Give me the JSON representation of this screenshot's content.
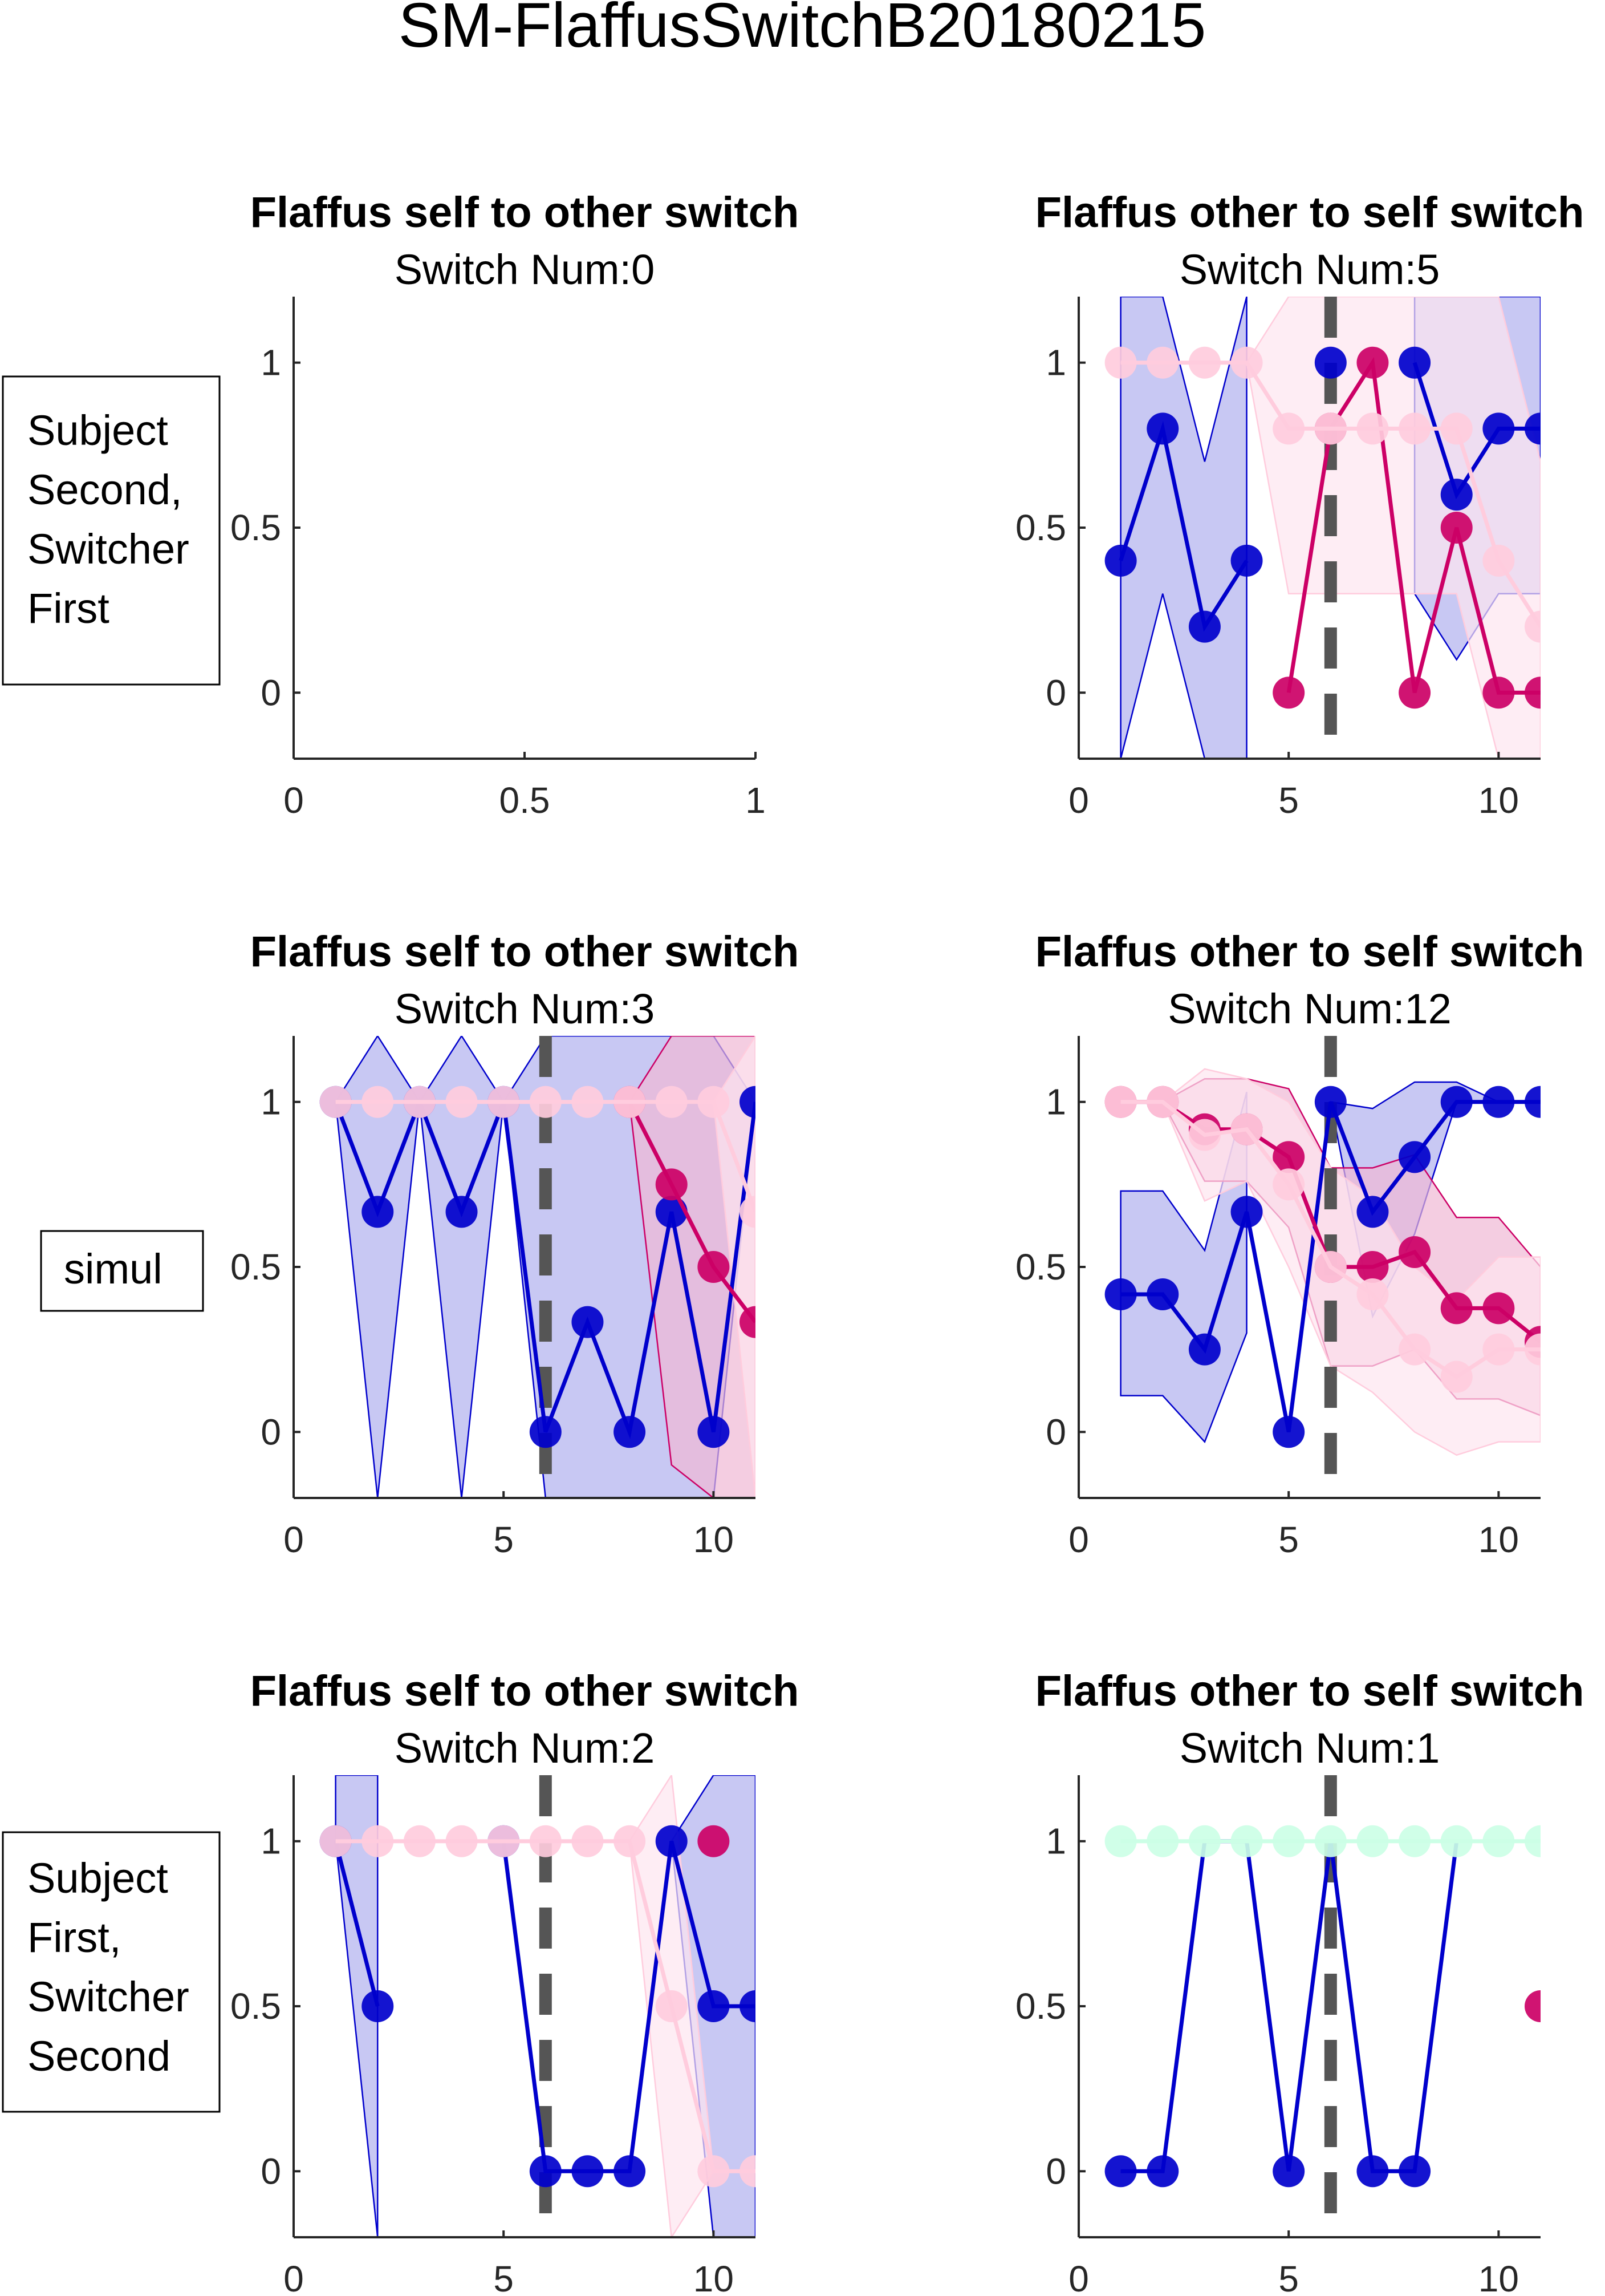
{
  "figure_title": "SM-FlaffusSwitchB20180215",
  "row_labels": [
    [
      "Subject",
      "Second,",
      "Switcher",
      "First"
    ],
    [
      "simul"
    ],
    [
      "Subject",
      "First,",
      "Switcher",
      "Second"
    ]
  ],
  "colors": {
    "blue": "#0000cc",
    "blue_fill": "#b0b0ee",
    "magenta": "#cc0066",
    "magenta_fill": "#f0b8d4",
    "pink": "#ffccdd",
    "pink_fill": "#fde6ef",
    "mint": "#ccffe6",
    "switch_line": "#555555"
  },
  "chart_data": [
    {
      "type": "line",
      "title": "Flaffus self to other switch",
      "subtitle": "Switch Num:0",
      "xlim": [
        0,
        1
      ],
      "ylim": [
        -0.2,
        1.2
      ],
      "xticks": [
        0,
        0.5,
        1
      ],
      "xtick_labels": [
        "0",
        "0.5",
        "1"
      ],
      "yticks": [
        0,
        0.5,
        1
      ],
      "ytick_labels": [
        "0",
        "0.5",
        "1"
      ],
      "switch_x": null,
      "series": []
    },
    {
      "type": "line",
      "title": "Flaffus other to self switch",
      "subtitle": "Switch Num:5",
      "xlim": [
        0,
        11
      ],
      "ylim": [
        -0.2,
        1.2
      ],
      "xticks": [
        0,
        5,
        10
      ],
      "xtick_labels": [
        "0",
        "5",
        "10"
      ],
      "yticks": [
        0,
        0.5,
        1
      ],
      "ytick_labels": [
        "0",
        "0.5",
        "1"
      ],
      "switch_x": 6,
      "series": [
        {
          "color": "blue",
          "fill": "blue_fill",
          "x": [
            1,
            2,
            3,
            4,
            5,
            6,
            7,
            8,
            9,
            10,
            11
          ],
          "y": [
            0.4,
            0.8,
            0.2,
            0.4,
            null,
            1,
            null,
            1,
            0.6,
            0.8,
            0.8
          ],
          "lower": [
            -0.2,
            0.3,
            -0.2,
            -0.2,
            null,
            0.3,
            null,
            0.3,
            0.1,
            0.3,
            0.3
          ],
          "upper": [
            1.2,
            1.2,
            0.7,
            1.2,
            null,
            1.2,
            null,
            1.2,
            1.2,
            1.2,
            1.2
          ]
        },
        {
          "color": "magenta",
          "fill": "magenta_fill",
          "x": [
            5,
            6,
            7,
            8,
            9,
            10,
            11
          ],
          "y": [
            0,
            0.8,
            1,
            0,
            0.5,
            0,
            0
          ],
          "lower": [
            null,
            null,
            null,
            null,
            null,
            null,
            null
          ],
          "upper": [
            null,
            null,
            null,
            null,
            null,
            null,
            null
          ]
        },
        {
          "color": "pink",
          "fill": "pink_fill",
          "x": [
            1,
            2,
            3,
            4,
            5,
            6,
            7,
            8,
            9,
            10,
            11
          ],
          "y": [
            1,
            1,
            1,
            1,
            0.8,
            0.8,
            0.8,
            0.8,
            0.8,
            0.4,
            0.2
          ],
          "lower": [
            1,
            1,
            1,
            1,
            0.3,
            0.3,
            0.3,
            0.3,
            0.3,
            -0.2,
            -0.2
          ],
          "upper": [
            1,
            1,
            1,
            1,
            1.2,
            1.2,
            1.2,
            1.2,
            1.2,
            1.2,
            0.7
          ]
        }
      ]
    },
    {
      "type": "line",
      "title": "Flaffus self to other switch",
      "subtitle": "Switch Num:3",
      "xlim": [
        0,
        11
      ],
      "ylim": [
        -0.2,
        1.2
      ],
      "xticks": [
        0,
        5,
        10
      ],
      "xtick_labels": [
        "0",
        "5",
        "10"
      ],
      "yticks": [
        0,
        0.5,
        1
      ],
      "ytick_labels": [
        "0",
        "0.5",
        "1"
      ],
      "switch_x": 6,
      "series": [
        {
          "color": "blue",
          "fill": "blue_fill",
          "x": [
            1,
            2,
            3,
            4,
            5,
            6,
            7,
            8,
            9,
            10,
            11
          ],
          "y": [
            1,
            0.667,
            1,
            0.667,
            1,
            0,
            0.333,
            0,
            0.667,
            0,
            1
          ],
          "lower": [
            1,
            -0.2,
            1,
            -0.2,
            1,
            -0.2,
            -0.2,
            -0.2,
            -0.2,
            -0.2,
            1
          ],
          "upper": [
            1,
            1.2,
            1,
            1.2,
            1,
            1.2,
            1.2,
            1.2,
            1.2,
            1.2,
            1
          ]
        },
        {
          "color": "magenta",
          "fill": "magenta_fill",
          "x": [
            8,
            9,
            10,
            11
          ],
          "y": [
            1,
            0.75,
            0.5,
            0.333
          ],
          "lower": [
            1,
            -0.1,
            -0.2,
            -0.2
          ],
          "upper": [
            1,
            1.2,
            1.2,
            1.2
          ]
        },
        {
          "color": "pink",
          "fill": "pink_fill",
          "x": [
            1,
            2,
            3,
            4,
            5,
            6,
            7,
            8,
            9,
            10,
            11
          ],
          "y": [
            1,
            1,
            1,
            1,
            1,
            1,
            1,
            1,
            1,
            1,
            0.667
          ],
          "lower": [
            1,
            1,
            1,
            1,
            1,
            1,
            1,
            1,
            1,
            1,
            -0.2
          ],
          "upper": [
            1,
            1,
            1,
            1,
            1,
            1,
            1,
            1,
            1,
            1,
            1.2
          ]
        }
      ]
    },
    {
      "type": "line",
      "title": "Flaffus other to self switch",
      "subtitle": "Switch Num:12",
      "xlim": [
        0,
        11
      ],
      "ylim": [
        -0.2,
        1.2
      ],
      "xticks": [
        0,
        5,
        10
      ],
      "xtick_labels": [
        "0",
        "5",
        "10"
      ],
      "yticks": [
        0,
        0.5,
        1
      ],
      "ytick_labels": [
        "0",
        "0.5",
        "1"
      ],
      "switch_x": 6,
      "series": [
        {
          "color": "blue",
          "fill": "blue_fill",
          "x": [
            1,
            2,
            3,
            4,
            5,
            6,
            7,
            8,
            9,
            10,
            11
          ],
          "y": [
            0.417,
            0.417,
            0.25,
            0.667,
            0,
            1,
            0.667,
            0.833,
            1,
            1,
            1
          ],
          "lower": [
            0.11,
            0.11,
            -0.03,
            0.3,
            null,
            1,
            0.35,
            0.6,
            1,
            1,
            1
          ],
          "upper": [
            0.73,
            0.73,
            0.55,
            1.03,
            null,
            1,
            0.98,
            1.06,
            1.06,
            1,
            1
          ]
        },
        {
          "color": "magenta",
          "fill": "magenta_fill",
          "x": [
            1,
            2,
            3,
            4,
            5,
            6,
            7,
            8,
            9,
            10,
            11
          ],
          "y": [
            1,
            1,
            0.917,
            0.917,
            0.833,
            0.5,
            0.5,
            0.545,
            0.375,
            0.375,
            0.273
          ],
          "lower": [
            1,
            1,
            0.76,
            0.76,
            0.62,
            0.2,
            0.2,
            0.25,
            0.1,
            0.1,
            0.05
          ],
          "upper": [
            1,
            1,
            1.07,
            1.07,
            1.04,
            0.8,
            0.8,
            0.84,
            0.65,
            0.65,
            0.5
          ]
        },
        {
          "color": "pink",
          "fill": "pink_fill",
          "x": [
            1,
            2,
            3,
            4,
            5,
            6,
            7,
            8,
            9,
            10,
            11
          ],
          "y": [
            1,
            1,
            0.9,
            0.917,
            0.75,
            0.5,
            0.417,
            0.25,
            0.167,
            0.25,
            0.25
          ],
          "lower": [
            1,
            1,
            0.7,
            0.76,
            0.5,
            0.2,
            0.12,
            0,
            -0.07,
            -0.03,
            -0.03
          ],
          "upper": [
            1,
            1,
            1.1,
            1.07,
            1,
            0.8,
            0.71,
            0.5,
            0.4,
            0.53,
            0.53
          ]
        }
      ]
    },
    {
      "type": "line",
      "title": "Flaffus self to other switch",
      "subtitle": "Switch Num:2",
      "xlim": [
        0,
        11
      ],
      "ylim": [
        -0.2,
        1.2
      ],
      "xticks": [
        0,
        5,
        10
      ],
      "xtick_labels": [
        "0",
        "5",
        "10"
      ],
      "yticks": [
        0,
        0.5,
        1
      ],
      "ytick_labels": [
        "0",
        "0.5",
        "1"
      ],
      "switch_x": 6,
      "series": [
        {
          "color": "blue",
          "fill": "blue_fill",
          "x": [
            1,
            2,
            3,
            4,
            5,
            6,
            7,
            8,
            9,
            10,
            11
          ],
          "y": [
            1,
            0.5,
            null,
            null,
            1,
            0,
            0,
            0,
            1,
            0.5,
            0.5
          ],
          "lower": [
            1,
            -0.2,
            null,
            null,
            1,
            0,
            0,
            0,
            1,
            -0.2,
            -0.2
          ],
          "upper": [
            1.2,
            1.2,
            null,
            null,
            1,
            0,
            0,
            0,
            1,
            1.2,
            1.2
          ]
        },
        {
          "color": "magenta",
          "fill": "magenta_fill",
          "x": [
            10
          ],
          "y": [
            1
          ],
          "lower": [
            null
          ],
          "upper": [
            null
          ]
        },
        {
          "color": "pink",
          "fill": "pink_fill",
          "x": [
            1,
            2,
            3,
            4,
            5,
            6,
            7,
            8,
            9,
            10,
            11
          ],
          "y": [
            1,
            1,
            1,
            1,
            1,
            1,
            1,
            1,
            0.5,
            0,
            0
          ],
          "lower": [
            1,
            1,
            1,
            1,
            1,
            1,
            1,
            1,
            -0.2,
            0,
            0
          ],
          "upper": [
            1,
            1,
            1,
            1,
            1,
            1,
            1,
            1,
            1.2,
            0,
            0
          ]
        }
      ]
    },
    {
      "type": "line",
      "title": "Flaffus other to self switch",
      "subtitle": "Switch Num:1",
      "xlim": [
        0,
        11
      ],
      "ylim": [
        -0.2,
        1.2
      ],
      "xticks": [
        0,
        5,
        10
      ],
      "xtick_labels": [
        "0",
        "5",
        "10"
      ],
      "yticks": [
        0,
        0.5,
        1
      ],
      "ytick_labels": [
        "0",
        "0.5",
        "1"
      ],
      "switch_x": 6,
      "series": [
        {
          "color": "blue",
          "x": [
            1,
            2,
            3,
            4,
            5,
            6,
            7,
            8,
            9,
            10,
            11
          ],
          "y": [
            0,
            0,
            1,
            1,
            0,
            1,
            0,
            0,
            1,
            null,
            null
          ],
          "show_markers": [
            true,
            true,
            false,
            false,
            true,
            false,
            true,
            true,
            false,
            false,
            false
          ]
        },
        {
          "color": "mint",
          "x": [
            1,
            2,
            3,
            4,
            5,
            6,
            7,
            8,
            9,
            10,
            11
          ],
          "y": [
            1,
            1,
            1,
            1,
            1,
            1,
            1,
            1,
            1,
            1,
            1
          ]
        },
        {
          "color": "magenta",
          "x": [
            11
          ],
          "y": [
            0.5
          ]
        }
      ]
    }
  ]
}
